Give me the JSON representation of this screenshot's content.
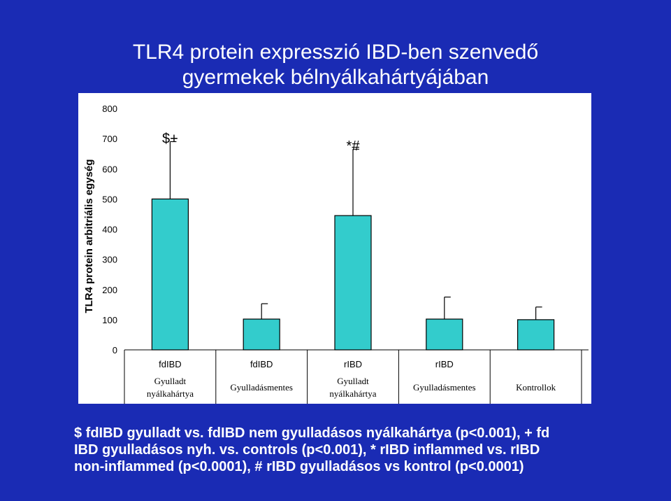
{
  "slide": {
    "title_line1": "TLR4 protein expresszió IBD-ben szenvedő",
    "title_line2": "gyermekek bélnyálkahártyájában",
    "caption_lines": [
      "$ fdIBD gyulladt vs. fdIBD nem gyulladásos nyálkahártya (p<0.001), + fd",
      "IBD gyulladásos nyh. vs. controls (p<0.001), * rIBD inflammed vs. rIBD",
      "non-inflammed (p<0.0001), # rIBD gyulladásos vs kontrol (p<0.0001)"
    ]
  },
  "chart_data": {
    "type": "bar",
    "ylabel": "TLR4 protein arbitriális egység",
    "ylim": [
      0,
      800
    ],
    "yticks": [
      0,
      100,
      200,
      300,
      400,
      500,
      600,
      700,
      800
    ],
    "groups": [
      "fdIBD",
      "fdIBD",
      "rIBD",
      "rIBD",
      ""
    ],
    "categories": [
      "Gyulladt nyálkahártya",
      "Gyulladásmentes",
      "Gyulladt nyálkahártya",
      "Gyulladásmentes",
      "Kontrollok"
    ],
    "category_lines": [
      [
        "Gyulladt",
        "nyálkahártya"
      ],
      [
        "Gyulladásmentes"
      ],
      [
        "Gyulladt",
        "nyálkahártya"
      ],
      [
        "Gyulladásmentes"
      ],
      [
        "Kontrollok"
      ]
    ],
    "values": [
      500,
      102,
      445,
      102,
      100
    ],
    "error_upper": [
      690,
      153,
      665,
      175,
      142
    ],
    "annotations": [
      "$+",
      "",
      "*#",
      "",
      ""
    ],
    "bar_color": "#33cccc",
    "grid": false
  }
}
